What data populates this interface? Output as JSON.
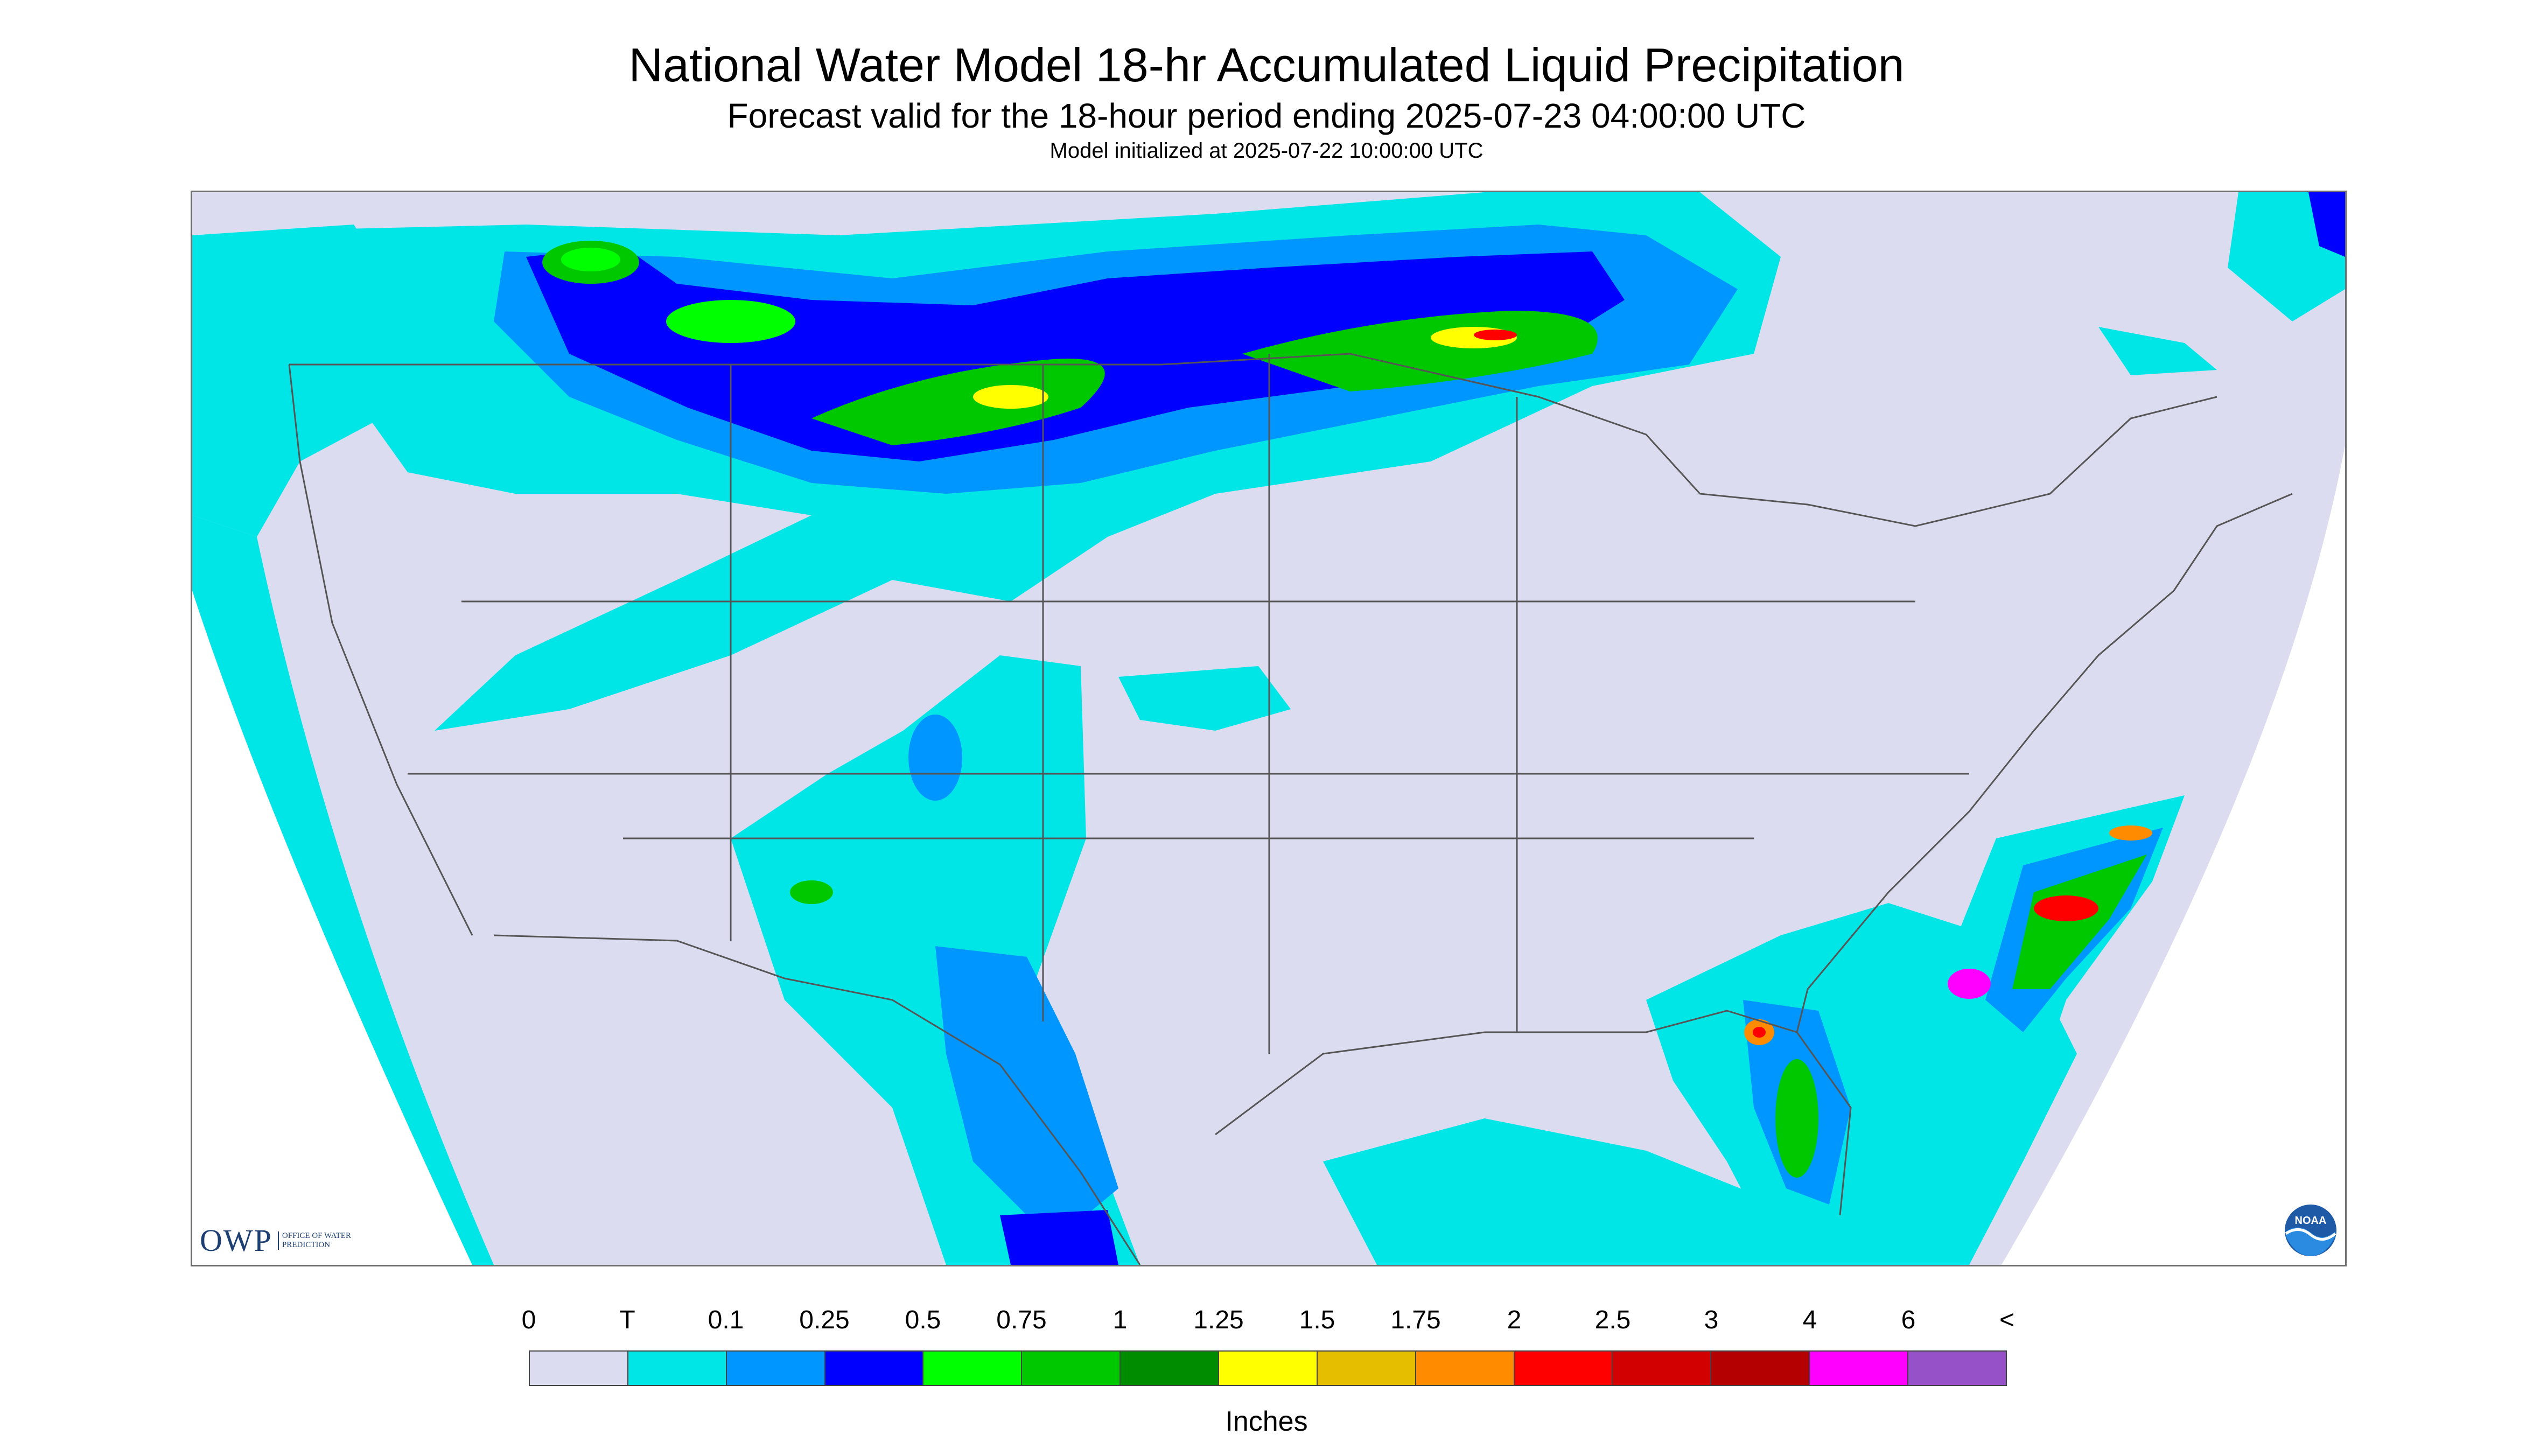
{
  "title": "National Water Model 18-hr Accumulated Liquid Precipitation",
  "subtitle": "Forecast valid for the 18-hour period ending 2025-07-23 04:00:00 UTC",
  "init_line": "Model initialized at 2025-07-22 10:00:00 UTC",
  "logos": {
    "owp_main": "OWP",
    "owp_sub": "OFFICE OF WATER PREDICTION",
    "noaa": "NOAA"
  },
  "legend": {
    "labels": [
      "0",
      "T",
      "0.1",
      "0.25",
      "0.5",
      "0.75",
      "1",
      "1.25",
      "1.5",
      "1.75",
      "2",
      "2.5",
      "3",
      "4",
      "6",
      "<"
    ],
    "colors": [
      "#dcdcf0",
      "#00e6e6",
      "#0096ff",
      "#0000ff",
      "#00ff00",
      "#00c800",
      "#008c00",
      "#ffff00",
      "#e6be00",
      "#ff8c00",
      "#ff0000",
      "#d20000",
      "#b40000",
      "#ff00ff",
      "#9650c8"
    ],
    "units": "Inches"
  },
  "map_colors": {
    "no_precip": "#dcdcf0",
    "trace": "#00e6e6",
    "light_blue": "#0096ff",
    "blue": "#0000ff",
    "green": "#00ff00",
    "dark_green": "#00c800",
    "yellow": "#ffff00",
    "orange": "#ff8c00",
    "red": "#ff0000",
    "magenta": "#ff00ff"
  }
}
